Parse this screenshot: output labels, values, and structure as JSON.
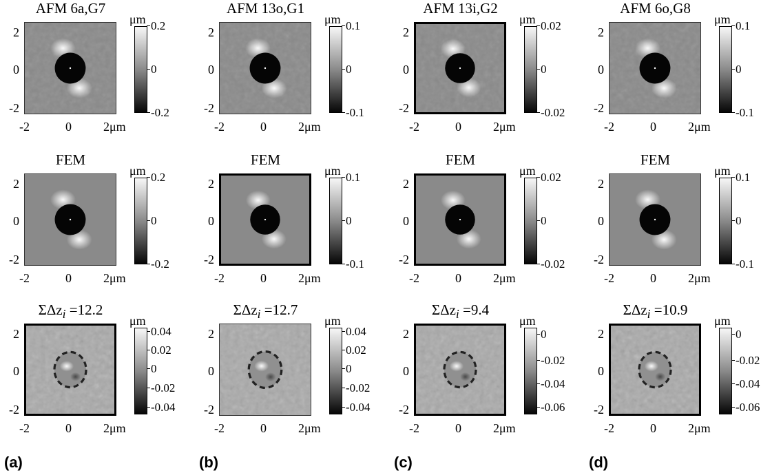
{
  "unit": "μm",
  "x_ticks": [
    "-2",
    "0",
    "2μm"
  ],
  "y_ticks": [
    "2",
    "0",
    "-2"
  ],
  "panel_labels": [
    "(a)",
    "(b)",
    "(c)",
    "(d)"
  ],
  "columns": [
    {
      "rows": [
        {
          "title": "AFM 6a,G7",
          "colorbar_ticks": [
            "0.2",
            "0",
            "-0.2"
          ],
          "image": "afm"
        },
        {
          "title": "FEM",
          "colorbar_ticks": [
            "0.2",
            "0",
            "-0.2"
          ],
          "image": "fem"
        },
        {
          "title": "ΣΔz",
          "title_sub": "i",
          "title_value": "=12.2",
          "colorbar_ticks": [
            "0.04",
            "0.02",
            "0",
            "-0.02",
            "-0.04"
          ],
          "image": "diff"
        }
      ]
    },
    {
      "rows": [
        {
          "title": "AFM 13o,G1",
          "colorbar_ticks": [
            "0.1",
            "0",
            "-0.1"
          ],
          "image": "afm"
        },
        {
          "title": "FEM",
          "colorbar_ticks": [
            "0.1",
            "0",
            "-0.1"
          ],
          "image": "fem"
        },
        {
          "title": "ΣΔz",
          "title_sub": "i",
          "title_value": "=12.7",
          "colorbar_ticks": [
            "0.04",
            "0.02",
            "0",
            "-0.02",
            "-0.04"
          ],
          "image": "diff"
        }
      ]
    },
    {
      "rows": [
        {
          "title": "AFM 13i,G2",
          "colorbar_ticks": [
            "0.02",
            "0",
            "-0.02"
          ],
          "image": "afm"
        },
        {
          "title": "FEM",
          "colorbar_ticks": [
            "0.02",
            "0",
            "-0.02"
          ],
          "image": "fem"
        },
        {
          "title": "ΣΔz",
          "title_sub": "i",
          "title_value": "=9.4",
          "colorbar_ticks": [
            "0",
            "-0.02",
            "-0.04",
            "-0.06"
          ],
          "image": "diff"
        }
      ]
    },
    {
      "rows": [
        {
          "title": "AFM 6o,G8",
          "colorbar_ticks": [
            "0.1",
            "0",
            "-0.1"
          ],
          "image": "afm"
        },
        {
          "title": "FEM",
          "colorbar_ticks": [
            "0.1",
            "0",
            "-0.1"
          ],
          "image": "fem"
        },
        {
          "title": "ΣΔz",
          "title_sub": "i",
          "title_value": "=10.9",
          "colorbar_ticks": [
            "0",
            "-0.02",
            "-0.04",
            "-0.06"
          ],
          "image": "diff"
        }
      ]
    }
  ]
}
